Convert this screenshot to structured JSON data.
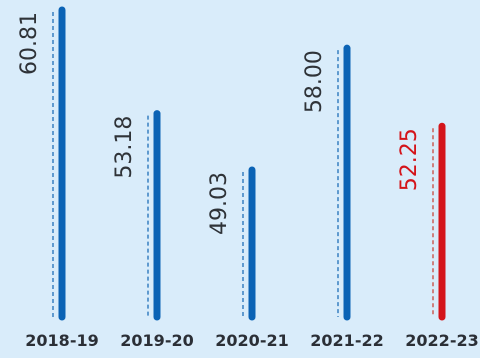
{
  "chart_data": {
    "type": "bar",
    "categories": [
      "2018-19",
      "2019-20",
      "2020-21",
      "2021-22",
      "2022-23"
    ],
    "values": [
      60.81,
      53.18,
      49.03,
      58.0,
      52.25
    ],
    "value_labels": [
      "60.81",
      "53.18",
      "49.03",
      "58.00",
      "52.25"
    ],
    "highlight_index": 4,
    "grid": false,
    "colors": {
      "bar": "#0b63b5",
      "highlight_bar": "#d4141a",
      "guide": "#1e6fb8",
      "highlight_guide": "#c9463c",
      "label": "#2f3338",
      "highlight_label": "#d4141a",
      "background": "#d9ecfa"
    }
  }
}
